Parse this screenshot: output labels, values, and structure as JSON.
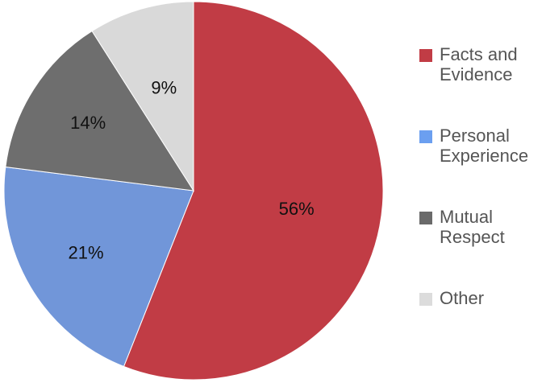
{
  "chart_data": {
    "type": "pie",
    "categories": [
      "Facts and Evidence",
      "Personal Experience",
      "Mutual Respect",
      "Other"
    ],
    "values": [
      56,
      21,
      14,
      9
    ],
    "data_labels": [
      "56%",
      "21%",
      "14%",
      "9%"
    ],
    "colors": [
      "#c13c45",
      "#7196d9",
      "#6e6e6e",
      "#d9d9d9"
    ],
    "legend": {
      "placement": "right",
      "entries": [
        {
          "line1": "Facts and",
          "line2": "Evidence"
        },
        {
          "line1": "Personal",
          "line2": "Experience"
        },
        {
          "line1": "Mutual",
          "line2": "Respect"
        },
        {
          "line1": "Other",
          "line2": ""
        }
      ]
    },
    "start": "top",
    "direction": "clockwise"
  }
}
